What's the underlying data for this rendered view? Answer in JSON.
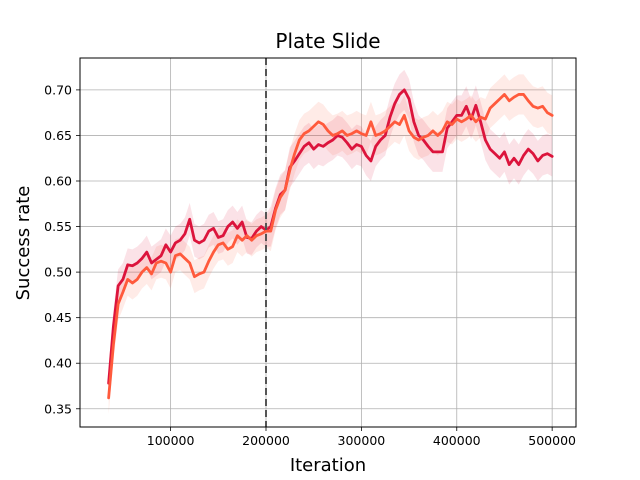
{
  "chart_data": {
    "type": "line",
    "title": "Plate Slide",
    "xlabel": "Iteration",
    "ylabel": "Success rate",
    "xlim": [
      5000,
      525000
    ],
    "ylim": [
      0.33,
      0.735
    ],
    "x_ticks": [
      100000,
      200000,
      300000,
      400000,
      500000
    ],
    "x_tick_labels": [
      "100000",
      "200000",
      "300000",
      "400000",
      "500000"
    ],
    "y_ticks": [
      0.35,
      0.4,
      0.45,
      0.5,
      0.55,
      0.6,
      0.65,
      0.7
    ],
    "y_tick_labels": [
      "0.35",
      "0.40",
      "0.45",
      "0.50",
      "0.55",
      "0.60",
      "0.65",
      "0.70"
    ],
    "grid": true,
    "vline": {
      "x": 200000,
      "style": "dashed",
      "color": "#555555"
    },
    "x": [
      35000,
      40000,
      45000,
      50000,
      55000,
      60000,
      65000,
      70000,
      75000,
      80000,
      85000,
      90000,
      95000,
      100000,
      105000,
      110000,
      115000,
      120000,
      125000,
      130000,
      135000,
      140000,
      145000,
      150000,
      155000,
      160000,
      165000,
      170000,
      175000,
      180000,
      185000,
      190000,
      195000,
      200000,
      205000,
      210000,
      215000,
      220000,
      225000,
      230000,
      235000,
      240000,
      245000,
      250000,
      255000,
      260000,
      265000,
      270000,
      275000,
      280000,
      285000,
      290000,
      295000,
      300000,
      305000,
      310000,
      315000,
      320000,
      325000,
      330000,
      335000,
      340000,
      345000,
      350000,
      355000,
      360000,
      365000,
      370000,
      375000,
      380000,
      385000,
      390000,
      395000,
      400000,
      405000,
      410000,
      415000,
      420000,
      425000,
      430000,
      435000,
      440000,
      445000,
      450000,
      455000,
      460000,
      465000,
      470000,
      475000,
      480000,
      485000,
      490000,
      495000,
      500000
    ],
    "series": [
      {
        "color": "#dc143c",
        "values": [
          0.378,
          0.44,
          0.485,
          0.492,
          0.508,
          0.507,
          0.51,
          0.515,
          0.522,
          0.51,
          0.514,
          0.518,
          0.53,
          0.522,
          0.532,
          0.535,
          0.542,
          0.558,
          0.535,
          0.532,
          0.535,
          0.545,
          0.548,
          0.538,
          0.54,
          0.55,
          0.555,
          0.548,
          0.555,
          0.538,
          0.537,
          0.545,
          0.55,
          0.546,
          0.55,
          0.57,
          0.585,
          0.59,
          0.615,
          0.622,
          0.63,
          0.638,
          0.642,
          0.635,
          0.64,
          0.638,
          0.642,
          0.645,
          0.65,
          0.648,
          0.642,
          0.635,
          0.64,
          0.638,
          0.628,
          0.622,
          0.638,
          0.645,
          0.65,
          0.67,
          0.685,
          0.695,
          0.7,
          0.69,
          0.665,
          0.65,
          0.645,
          0.638,
          0.632,
          0.632,
          0.632,
          0.658,
          0.665,
          0.672,
          0.672,
          0.682,
          0.668,
          0.683,
          0.665,
          0.645,
          0.635,
          0.63,
          0.625,
          0.632,
          0.618,
          0.625,
          0.618,
          0.628,
          0.635,
          0.63,
          0.622,
          0.628,
          0.63,
          0.627
        ]
      },
      {
        "color": "#ff5a3c",
        "values": [
          0.362,
          0.42,
          0.465,
          0.478,
          0.492,
          0.488,
          0.492,
          0.5,
          0.505,
          0.498,
          0.51,
          0.512,
          0.51,
          0.5,
          0.518,
          0.52,
          0.515,
          0.51,
          0.495,
          0.498,
          0.5,
          0.512,
          0.522,
          0.53,
          0.532,
          0.525,
          0.528,
          0.54,
          0.535,
          0.54,
          0.535,
          0.54,
          0.542,
          0.545,
          0.545,
          0.568,
          0.582,
          0.59,
          0.612,
          0.63,
          0.645,
          0.652,
          0.655,
          0.66,
          0.665,
          0.662,
          0.655,
          0.65,
          0.652,
          0.655,
          0.65,
          0.652,
          0.655,
          0.652,
          0.65,
          0.665,
          0.65,
          0.652,
          0.655,
          0.66,
          0.665,
          0.662,
          0.672,
          0.655,
          0.648,
          0.645,
          0.648,
          0.65,
          0.655,
          0.65,
          0.655,
          0.665,
          0.662,
          0.668,
          0.665,
          0.668,
          0.672,
          0.665,
          0.67,
          0.668,
          0.68,
          0.685,
          0.69,
          0.695,
          0.688,
          0.692,
          0.695,
          0.695,
          0.688,
          0.682,
          0.68,
          0.682,
          0.675,
          0.672
        ]
      }
    ]
  }
}
